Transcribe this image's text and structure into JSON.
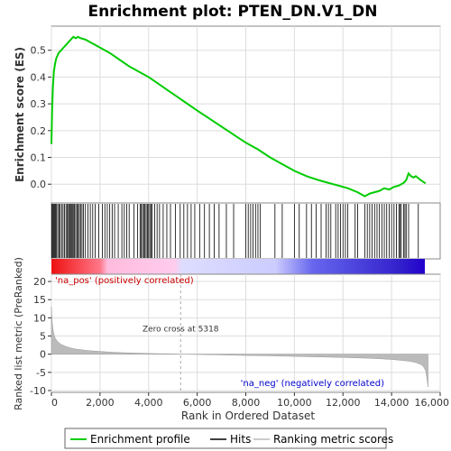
{
  "chart_data": {
    "type": "line",
    "title": "Enrichment plot: PTEN_DN.V1_DN",
    "xlabel": "Rank in Ordered Dataset",
    "ylabel_top": "Enrichment score (ES)",
    "ylabel_bottom": "Ranked list metric (PreRanked)",
    "x_range": [
      0,
      15500
    ],
    "x_ticks": [
      "0",
      "2,000",
      "4,000",
      "6,000",
      "8,000",
      "10,000",
      "12,000",
      "14,000",
      "16,000"
    ],
    "x_tick_values": [
      0,
      2000,
      4000,
      6000,
      8000,
      10000,
      12000,
      14000,
      16000
    ],
    "es_ylim": [
      -0.07,
      0.59
    ],
    "es_ticks": [
      "0.0",
      "0.1",
      "0.2",
      "0.3",
      "0.4",
      "0.5"
    ],
    "es_tick_values": [
      0.0,
      0.1,
      0.2,
      0.3,
      0.4,
      0.5
    ],
    "metric_ylim": [
      -10.5,
      22
    ],
    "metric_ticks": [
      "-10",
      "-5",
      "0",
      "5",
      "10",
      "15",
      "20"
    ],
    "metric_tick_values": [
      -10,
      -5,
      0,
      5,
      10,
      15,
      20
    ],
    "enrichment_profile": {
      "name": "Enrichment profile",
      "color": "#00cc00",
      "x": [
        0,
        30,
        60,
        100,
        150,
        200,
        300,
        400,
        500,
        600,
        700,
        800,
        900,
        1000,
        1100,
        1200,
        1400,
        1600,
        1800,
        2000,
        2400,
        2800,
        3200,
        3600,
        4000,
        4400,
        4800,
        5200,
        5600,
        6000,
        6500,
        7000,
        7500,
        8000,
        8500,
        9000,
        9500,
        10000,
        10500,
        11000,
        11400,
        11800,
        12200,
        12600,
        12900,
        13100,
        13300,
        13500,
        13700,
        13900,
        14100,
        14300,
        14500,
        14600,
        14700,
        14800,
        14900,
        15000,
        15200,
        15400
      ],
      "y": [
        0.15,
        0.28,
        0.36,
        0.42,
        0.45,
        0.47,
        0.49,
        0.5,
        0.51,
        0.52,
        0.53,
        0.54,
        0.55,
        0.545,
        0.55,
        0.545,
        0.54,
        0.53,
        0.52,
        0.51,
        0.49,
        0.465,
        0.44,
        0.42,
        0.4,
        0.375,
        0.35,
        0.325,
        0.3,
        0.275,
        0.245,
        0.215,
        0.185,
        0.155,
        0.13,
        0.1,
        0.075,
        0.05,
        0.03,
        0.015,
        0.005,
        -0.005,
        -0.015,
        -0.03,
        -0.045,
        -0.035,
        -0.03,
        -0.025,
        -0.015,
        -0.02,
        -0.01,
        -0.005,
        0.005,
        0.015,
        0.04,
        0.03,
        0.025,
        0.03,
        0.015,
        0.003
      ]
    },
    "hits": {
      "name": "Hits",
      "x": [
        20,
        60,
        90,
        130,
        170,
        210,
        260,
        310,
        360,
        420,
        480,
        540,
        600,
        650,
        700,
        740,
        780,
        820,
        860,
        900,
        950,
        1000,
        1050,
        1100,
        1150,
        1200,
        1260,
        1320,
        1400,
        1500,
        1600,
        1700,
        1800,
        1950,
        2100,
        2200,
        2300,
        2400,
        2500,
        2600,
        2750,
        2900,
        3000,
        3100,
        3200,
        3400,
        3550,
        3650,
        3700,
        3750,
        3800,
        3850,
        3900,
        3950,
        4000,
        4050,
        4100,
        4150,
        4250,
        4350,
        4450,
        4600,
        4750,
        4900,
        5100,
        5300,
        5450,
        5600,
        5750,
        5900,
        6100,
        6300,
        6500,
        6700,
        6900,
        7200,
        7500,
        8000,
        8100,
        8200,
        8300,
        8400,
        8500,
        8600,
        9200,
        9500,
        10000,
        10200,
        10500,
        10700,
        10900,
        11100,
        11300,
        11400,
        11500,
        11700,
        11800,
        11900,
        12000,
        12100,
        12200,
        12500,
        12600,
        12900,
        13000,
        13100,
        13200,
        13300,
        13400,
        13500,
        13600,
        13700,
        13800,
        13900,
        14000,
        14100,
        14200,
        14300,
        14350,
        14400,
        14500,
        14550,
        14600,
        14700,
        15100
      ]
    },
    "metric_series": {
      "name": "Ranking metric scores",
      "x": [
        0,
        30,
        60,
        100,
        150,
        200,
        300,
        400,
        600,
        800,
        1000,
        1500,
        2000,
        2500,
        3000,
        4000,
        5000,
        5318,
        6000,
        7000,
        8000,
        9000,
        10000,
        11000,
        12000,
        13000,
        13500,
        14000,
        14500,
        14800,
        15000,
        15200,
        15300,
        15400,
        15450,
        15500
      ],
      "y": [
        13,
        9,
        7,
        5.5,
        4.5,
        4,
        3.2,
        2.7,
        2.1,
        1.7,
        1.4,
        1.0,
        0.75,
        0.55,
        0.4,
        0.2,
        0.06,
        0,
        -0.08,
        -0.2,
        -0.35,
        -0.45,
        -0.6,
        -0.75,
        -0.9,
        -1.1,
        -1.25,
        -1.45,
        -1.75,
        -2.0,
        -2.3,
        -2.8,
        -3.3,
        -4.5,
        -6.5,
        -9
      ]
    },
    "zero_cross_label": "Zero cross at 5318",
    "zero_cross_x": 5318,
    "pos_label": "'na_pos' (positively correlated)",
    "neg_label": "'na_neg' (negatively correlated)",
    "legend": [
      {
        "name": "Enrichment profile",
        "color": "#00cc00",
        "icon": "green-line"
      },
      {
        "name": "Hits",
        "color": "#000000",
        "icon": "black-line"
      },
      {
        "name": "Ranking metric scores",
        "color": "#bbbbbb",
        "icon": "gray-line"
      }
    ],
    "legend_position": "bottom",
    "colors": {
      "pos_strong": "#ee2222",
      "pos_light": "#ffccee",
      "neg_light": "#ccccff",
      "neg_strong": "#2200cc",
      "grid": "#dddddd"
    }
  }
}
